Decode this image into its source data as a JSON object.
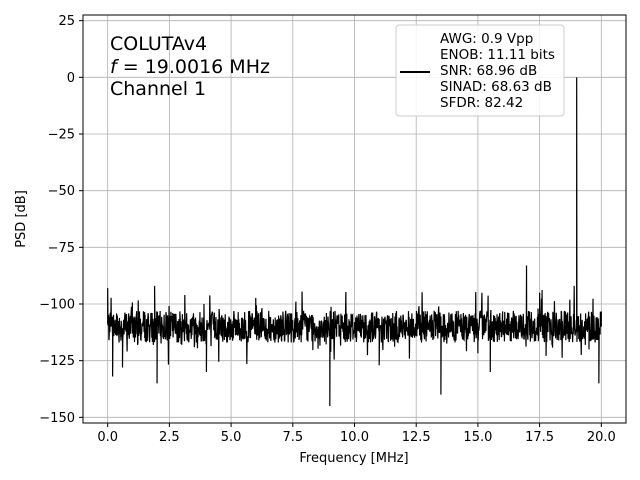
{
  "chart_data": {
    "type": "line",
    "xlabel": "Frequency [MHz]",
    "ylabel": "PSD [dB]",
    "xlim": [
      -1.0,
      21.0
    ],
    "ylim": [
      -152.5,
      27.5
    ],
    "xticks": [
      0.0,
      2.5,
      5.0,
      7.5,
      10.0,
      12.5,
      15.0,
      17.5,
      20.0
    ],
    "xtick_labels": [
      "0.0",
      "2.5",
      "5.0",
      "7.5",
      "10.0",
      "12.5",
      "15.0",
      "17.5",
      "20.0"
    ],
    "yticks": [
      25,
      0,
      -25,
      -50,
      -75,
      -100,
      -125,
      -150
    ],
    "ytick_labels": [
      "25",
      "0",
      "−25",
      "−50",
      "−75",
      "−100",
      "−125",
      "−150"
    ],
    "grid": true,
    "legend_position": "top-right",
    "annotation": {
      "line1": "COLUTAv4",
      "line2_symbol": "f",
      "line2_rest": " = 19.0016 MHz",
      "line3": "Channel 1"
    },
    "legend": {
      "lines": [
        "AWG: 0.9 Vpp",
        "ENOB: 11.11 bits",
        "SNR: 68.96 dB",
        "SINAD: 68.63 dB",
        "SFDR: 82.42"
      ]
    },
    "series": [
      {
        "color": "#000000",
        "noise_floor_db": -110,
        "x": [
          0.0,
          0.1,
          0.2,
          0.4,
          0.6,
          1.0,
          1.5,
          1.9,
          2.0,
          2.5,
          3.0,
          3.9,
          4.0,
          5.0,
          6.0,
          7.5,
          8.0,
          9.0,
          9.1,
          10.0,
          11.0,
          12.0,
          13.0,
          13.5,
          14.0,
          15.0,
          15.5,
          16.0,
          16.5,
          16.97,
          17.0,
          17.5,
          18.0,
          18.5,
          18.9,
          19.0016,
          19.1,
          19.5,
          19.9,
          20.0
        ],
        "y": [
          -93,
          -110,
          -132,
          -108,
          -128,
          -113,
          -115,
          -92,
          -135,
          -110,
          -118,
          -100,
          -130,
          -110,
          -108,
          -112,
          -110,
          -145,
          -110,
          -108,
          -127,
          -110,
          -110,
          -140,
          -112,
          -110,
          -130,
          -108,
          -112,
          -83,
          -110,
          -95,
          -118,
          -110,
          -92,
          0,
          -110,
          -120,
          -135,
          -110
        ]
      }
    ]
  }
}
